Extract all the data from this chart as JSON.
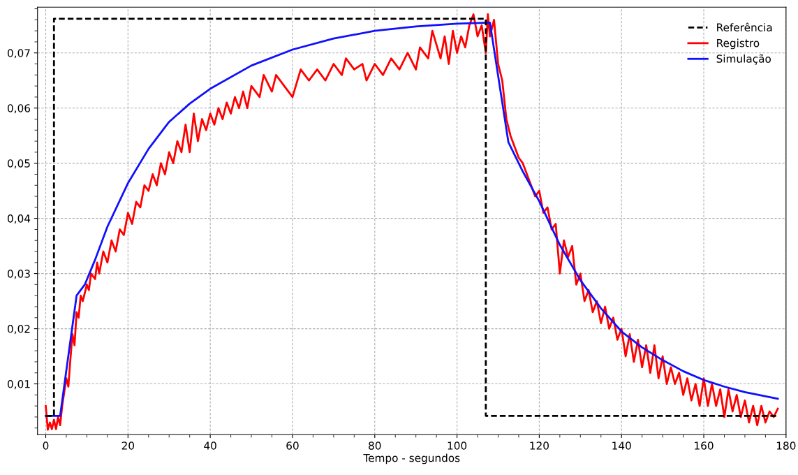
{
  "chart_data": {
    "type": "line",
    "xlabel": "Tempo - segundos",
    "xlim": [
      -2,
      180
    ],
    "ylim": [
      0.0008,
      0.0783
    ],
    "xticks": [
      0,
      20,
      40,
      60,
      80,
      100,
      120,
      140,
      160,
      180
    ],
    "yticks": [
      {
        "value": 0.01,
        "label": "0,01"
      },
      {
        "value": 0.02,
        "label": "0,02"
      },
      {
        "value": 0.03,
        "label": "0,03"
      },
      {
        "value": 0.04,
        "label": "0,04"
      },
      {
        "value": 0.05,
        "label": "0,05"
      },
      {
        "value": 0.06,
        "label": "0,06"
      },
      {
        "value": 0.07,
        "label": "0,07"
      }
    ],
    "grid": true,
    "legend": "top right",
    "marker": "none",
    "series": [
      {
        "name": "Referência",
        "color": "#000000",
        "line_style": "dashed",
        "x": [
          0,
          2,
          2,
          107,
          107,
          178
        ],
        "values": [
          0.0042,
          0.0042,
          0.0762,
          0.0762,
          0.0042,
          0.0042
        ]
      },
      {
        "name": "Registro",
        "color": "#ff0000",
        "line_style": "solid",
        "x": [
          0,
          0.5,
          1,
          1.5,
          2,
          2.5,
          3,
          3.5,
          4,
          5,
          5.5,
          6,
          6.5,
          7,
          7.5,
          8,
          8.5,
          9,
          10,
          10.5,
          11,
          12,
          12.5,
          13,
          14,
          15,
          16,
          17,
          18,
          19,
          20,
          21,
          22,
          23,
          24,
          25,
          26,
          27,
          28,
          29,
          30,
          31,
          32,
          33,
          34,
          35,
          36,
          37,
          38,
          39,
          40,
          41,
          42,
          43,
          44,
          45,
          46,
          47,
          48,
          49,
          50,
          52,
          53,
          55,
          56,
          58,
          60,
          62,
          64,
          66,
          68,
          70,
          72,
          73,
          75,
          77,
          78,
          80,
          82,
          84,
          86,
          88,
          90,
          91,
          93,
          94,
          96,
          97,
          98,
          99,
          100,
          101,
          102,
          103,
          104,
          105,
          106,
          107,
          107.5,
          108,
          109,
          110,
          111,
          112,
          113,
          114,
          115,
          116,
          117,
          118,
          119,
          120,
          121,
          122,
          123,
          124,
          125,
          126,
          127,
          128,
          129,
          130,
          131,
          132,
          133,
          134,
          135,
          136,
          137,
          138,
          139,
          140,
          141,
          142,
          143,
          144,
          145,
          146,
          147,
          148,
          149,
          150,
          151,
          152,
          153,
          154,
          155,
          156,
          157,
          158,
          159,
          160,
          161,
          162,
          163,
          164,
          165,
          166,
          167,
          168,
          169,
          170,
          171,
          172,
          173,
          174,
          175,
          176,
          177,
          178
        ],
        "values": [
          0.006,
          0.0017,
          0.003,
          0.0018,
          0.0035,
          0.0018,
          0.004,
          0.0025,
          0.006,
          0.011,
          0.0095,
          0.0145,
          0.019,
          0.017,
          0.023,
          0.022,
          0.026,
          0.025,
          0.028,
          0.027,
          0.03,
          0.029,
          0.032,
          0.03,
          0.034,
          0.032,
          0.036,
          0.034,
          0.038,
          0.037,
          0.041,
          0.039,
          0.043,
          0.042,
          0.046,
          0.045,
          0.048,
          0.046,
          0.05,
          0.048,
          0.052,
          0.05,
          0.054,
          0.052,
          0.057,
          0.052,
          0.059,
          0.054,
          0.058,
          0.056,
          0.059,
          0.057,
          0.06,
          0.058,
          0.061,
          0.059,
          0.062,
          0.06,
          0.063,
          0.06,
          0.064,
          0.062,
          0.066,
          0.063,
          0.066,
          0.064,
          0.062,
          0.067,
          0.065,
          0.067,
          0.065,
          0.068,
          0.066,
          0.069,
          0.067,
          0.068,
          0.065,
          0.068,
          0.066,
          0.069,
          0.067,
          0.07,
          0.067,
          0.071,
          0.069,
          0.074,
          0.069,
          0.073,
          0.068,
          0.074,
          0.07,
          0.073,
          0.071,
          0.075,
          0.077,
          0.073,
          0.075,
          0.07,
          0.077,
          0.073,
          0.076,
          0.068,
          0.065,
          0.058,
          0.055,
          0.053,
          0.051,
          0.05,
          0.048,
          0.046,
          0.044,
          0.045,
          0.041,
          0.042,
          0.038,
          0.039,
          0.03,
          0.036,
          0.033,
          0.035,
          0.028,
          0.03,
          0.025,
          0.027,
          0.023,
          0.025,
          0.021,
          0.024,
          0.02,
          0.022,
          0.018,
          0.02,
          0.015,
          0.019,
          0.014,
          0.018,
          0.013,
          0.017,
          0.012,
          0.017,
          0.011,
          0.015,
          0.01,
          0.013,
          0.01,
          0.012,
          0.008,
          0.011,
          0.007,
          0.01,
          0.006,
          0.011,
          0.006,
          0.01,
          0.006,
          0.009,
          0.004,
          0.009,
          0.005,
          0.008,
          0.004,
          0.007,
          0.003,
          0.006,
          0.0025,
          0.006,
          0.003,
          0.005,
          0.004,
          0.0055
        ]
      },
      {
        "name": "Simulação",
        "color": "#1010ff",
        "line_style": "solid",
        "x": [
          0,
          3.5,
          7.5,
          9.5,
          12,
          15,
          20,
          25,
          30,
          35,
          40,
          50,
          60,
          70,
          80,
          90,
          100,
          108,
          112.5,
          116,
          120,
          125,
          130,
          135,
          140,
          145,
          150,
          155,
          160,
          165,
          170,
          178
        ],
        "values": [
          0.0042,
          0.0042,
          0.026,
          0.028,
          0.0325,
          0.0385,
          0.0464,
          0.0526,
          0.0575,
          0.0608,
          0.0635,
          0.0677,
          0.0706,
          0.0726,
          0.074,
          0.0748,
          0.0753,
          0.0755,
          0.0538,
          0.0485,
          0.0431,
          0.0352,
          0.0288,
          0.0237,
          0.0195,
          0.0166,
          0.0143,
          0.0123,
          0.0107,
          0.0095,
          0.0085,
          0.0073
        ]
      }
    ]
  }
}
